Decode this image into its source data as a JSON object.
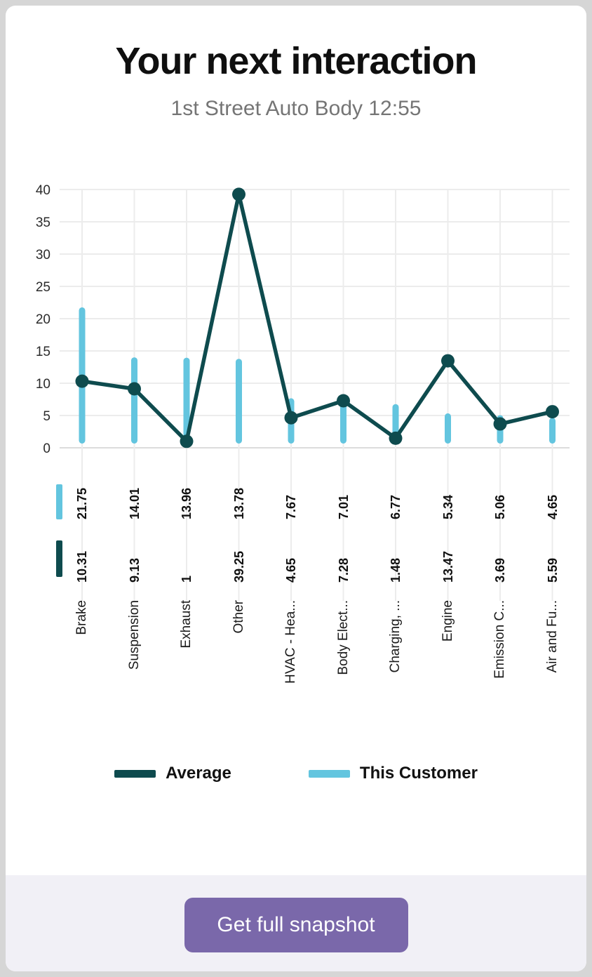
{
  "header": {
    "title": "Your next interaction",
    "subtitle": "1st Street Auto Body 12:55"
  },
  "chart_data": {
    "type": "bar",
    "subtype": "bar+line combo, rotated value and category labels below axis",
    "categories": [
      "Brake",
      "Suspension",
      "Exhaust",
      "Other",
      "HVAC - Hea...",
      "Body Elect...",
      "Charging, ...",
      "Engine",
      "Emission C...",
      "Air and Fu..."
    ],
    "series": [
      {
        "name": "Average",
        "type": "line",
        "color": "#0e4b4e",
        "values": [
          10.31,
          9.13,
          1,
          39.25,
          4.65,
          7.28,
          1.48,
          13.47,
          3.69,
          5.59
        ]
      },
      {
        "name": "This Customer",
        "type": "bar",
        "color": "#63c5df",
        "values": [
          21.75,
          14.01,
          13.96,
          13.78,
          7.67,
          7.01,
          6.77,
          5.34,
          5.06,
          4.65
        ]
      }
    ],
    "value_label_row_order": [
      "This Customer",
      "Average"
    ],
    "title": "",
    "xlabel": "",
    "ylabel": "",
    "ylim": [
      0,
      40
    ],
    "yticks": [
      0,
      5,
      10,
      15,
      20,
      25,
      30,
      35,
      40
    ],
    "grid": true,
    "legend_position": "bottom"
  },
  "legend": {
    "items": [
      {
        "label": "Average",
        "color": "#0e4b4e"
      },
      {
        "label": "This Customer",
        "color": "#63c5df"
      }
    ]
  },
  "footer": {
    "button_label": "Get full snapshot",
    "button_color": "#7a68aa"
  },
  "colors": {
    "page_background": "#d6d6d6",
    "card_background": "#ffffff",
    "footer_background": "#f1f0f6",
    "gridline": "#ececec",
    "axis_baseline": "#dcdcdc",
    "subtitle_text": "#757575"
  }
}
